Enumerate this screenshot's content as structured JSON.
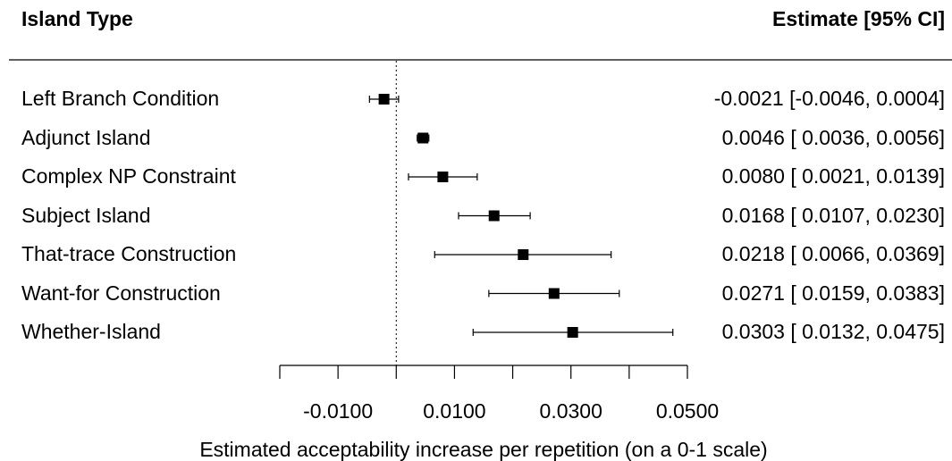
{
  "chart_data": {
    "type": "forest",
    "headers": {
      "left": "Island Type",
      "right": "Estimate [95% CI]"
    },
    "xlabel": "Estimated acceptability increase per repetition (on a 0-1 scale)",
    "xlim": [
      -0.02,
      0.05
    ],
    "reference_line": 0,
    "ticks": [
      -0.02,
      -0.01,
      0.0,
      0.01,
      0.02,
      0.03,
      0.04,
      0.05
    ],
    "tick_labels": [
      {
        "value": -0.01,
        "label": "-0.0100"
      },
      {
        "value": 0.01,
        "label": "0.0100"
      },
      {
        "value": 0.03,
        "label": "0.0300"
      },
      {
        "value": 0.05,
        "label": "0.0500"
      }
    ],
    "rows": [
      {
        "label": "Left Branch Condition",
        "estimate": -0.0021,
        "lower": -0.0046,
        "upper": 0.0004,
        "text": "-0.0021 [-0.0046, 0.0004]"
      },
      {
        "label": "Adjunct Island",
        "estimate": 0.0046,
        "lower": 0.0036,
        "upper": 0.0056,
        "text": "0.0046 [ 0.0036, 0.0056]"
      },
      {
        "label": "Complex NP Constraint",
        "estimate": 0.008,
        "lower": 0.0021,
        "upper": 0.0139,
        "text": "0.0080 [ 0.0021, 0.0139]"
      },
      {
        "label": "Subject Island",
        "estimate": 0.0168,
        "lower": 0.0107,
        "upper": 0.023,
        "text": "0.0168 [ 0.0107, 0.0230]"
      },
      {
        "label": "That-trace Construction",
        "estimate": 0.0218,
        "lower": 0.0066,
        "upper": 0.0369,
        "text": "0.0218 [ 0.0066, 0.0369]"
      },
      {
        "label": "Want-for Construction",
        "estimate": 0.0271,
        "lower": 0.0159,
        "upper": 0.0383,
        "text": "0.0271 [ 0.0159, 0.0383]"
      },
      {
        "label": "Whether-Island",
        "estimate": 0.0303,
        "lower": 0.0132,
        "upper": 0.0475,
        "text": "0.0303 [ 0.0132, 0.0475]"
      }
    ]
  }
}
